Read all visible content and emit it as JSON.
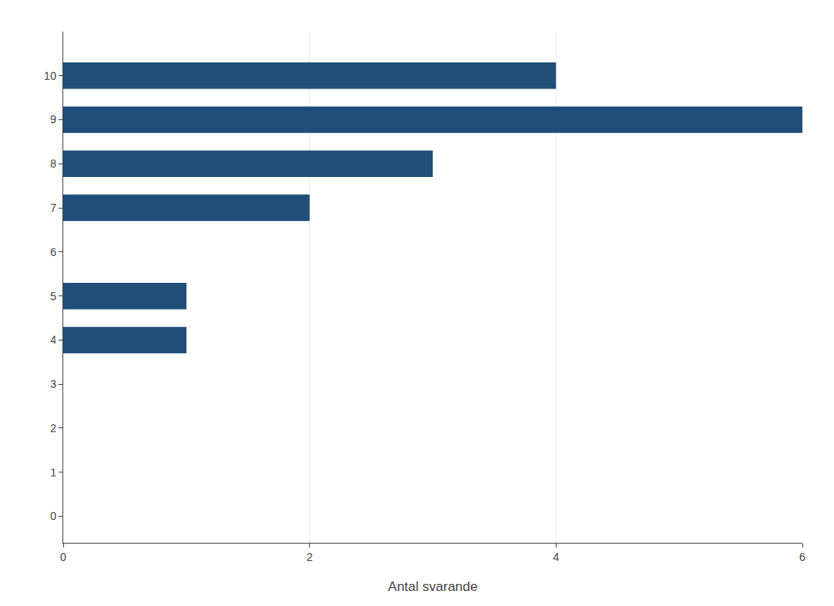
{
  "chart_data": {
    "type": "bar",
    "orientation": "horizontal",
    "categories": [
      0,
      1,
      2,
      3,
      4,
      5,
      6,
      7,
      8,
      9,
      10
    ],
    "values": [
      0,
      0,
      0,
      0,
      1,
      1,
      0,
      2,
      3,
      6,
      4
    ],
    "color": "#1F4E79",
    "xlabel": "Antal svarande",
    "xlim": [
      0,
      6
    ],
    "xticks": [
      0,
      2,
      4,
      6
    ],
    "ylim": [
      -0.6,
      11.0
    ],
    "yticks": [
      0,
      1,
      2,
      3,
      4,
      5,
      6,
      7,
      8,
      9,
      10
    ],
    "grid": "x"
  }
}
